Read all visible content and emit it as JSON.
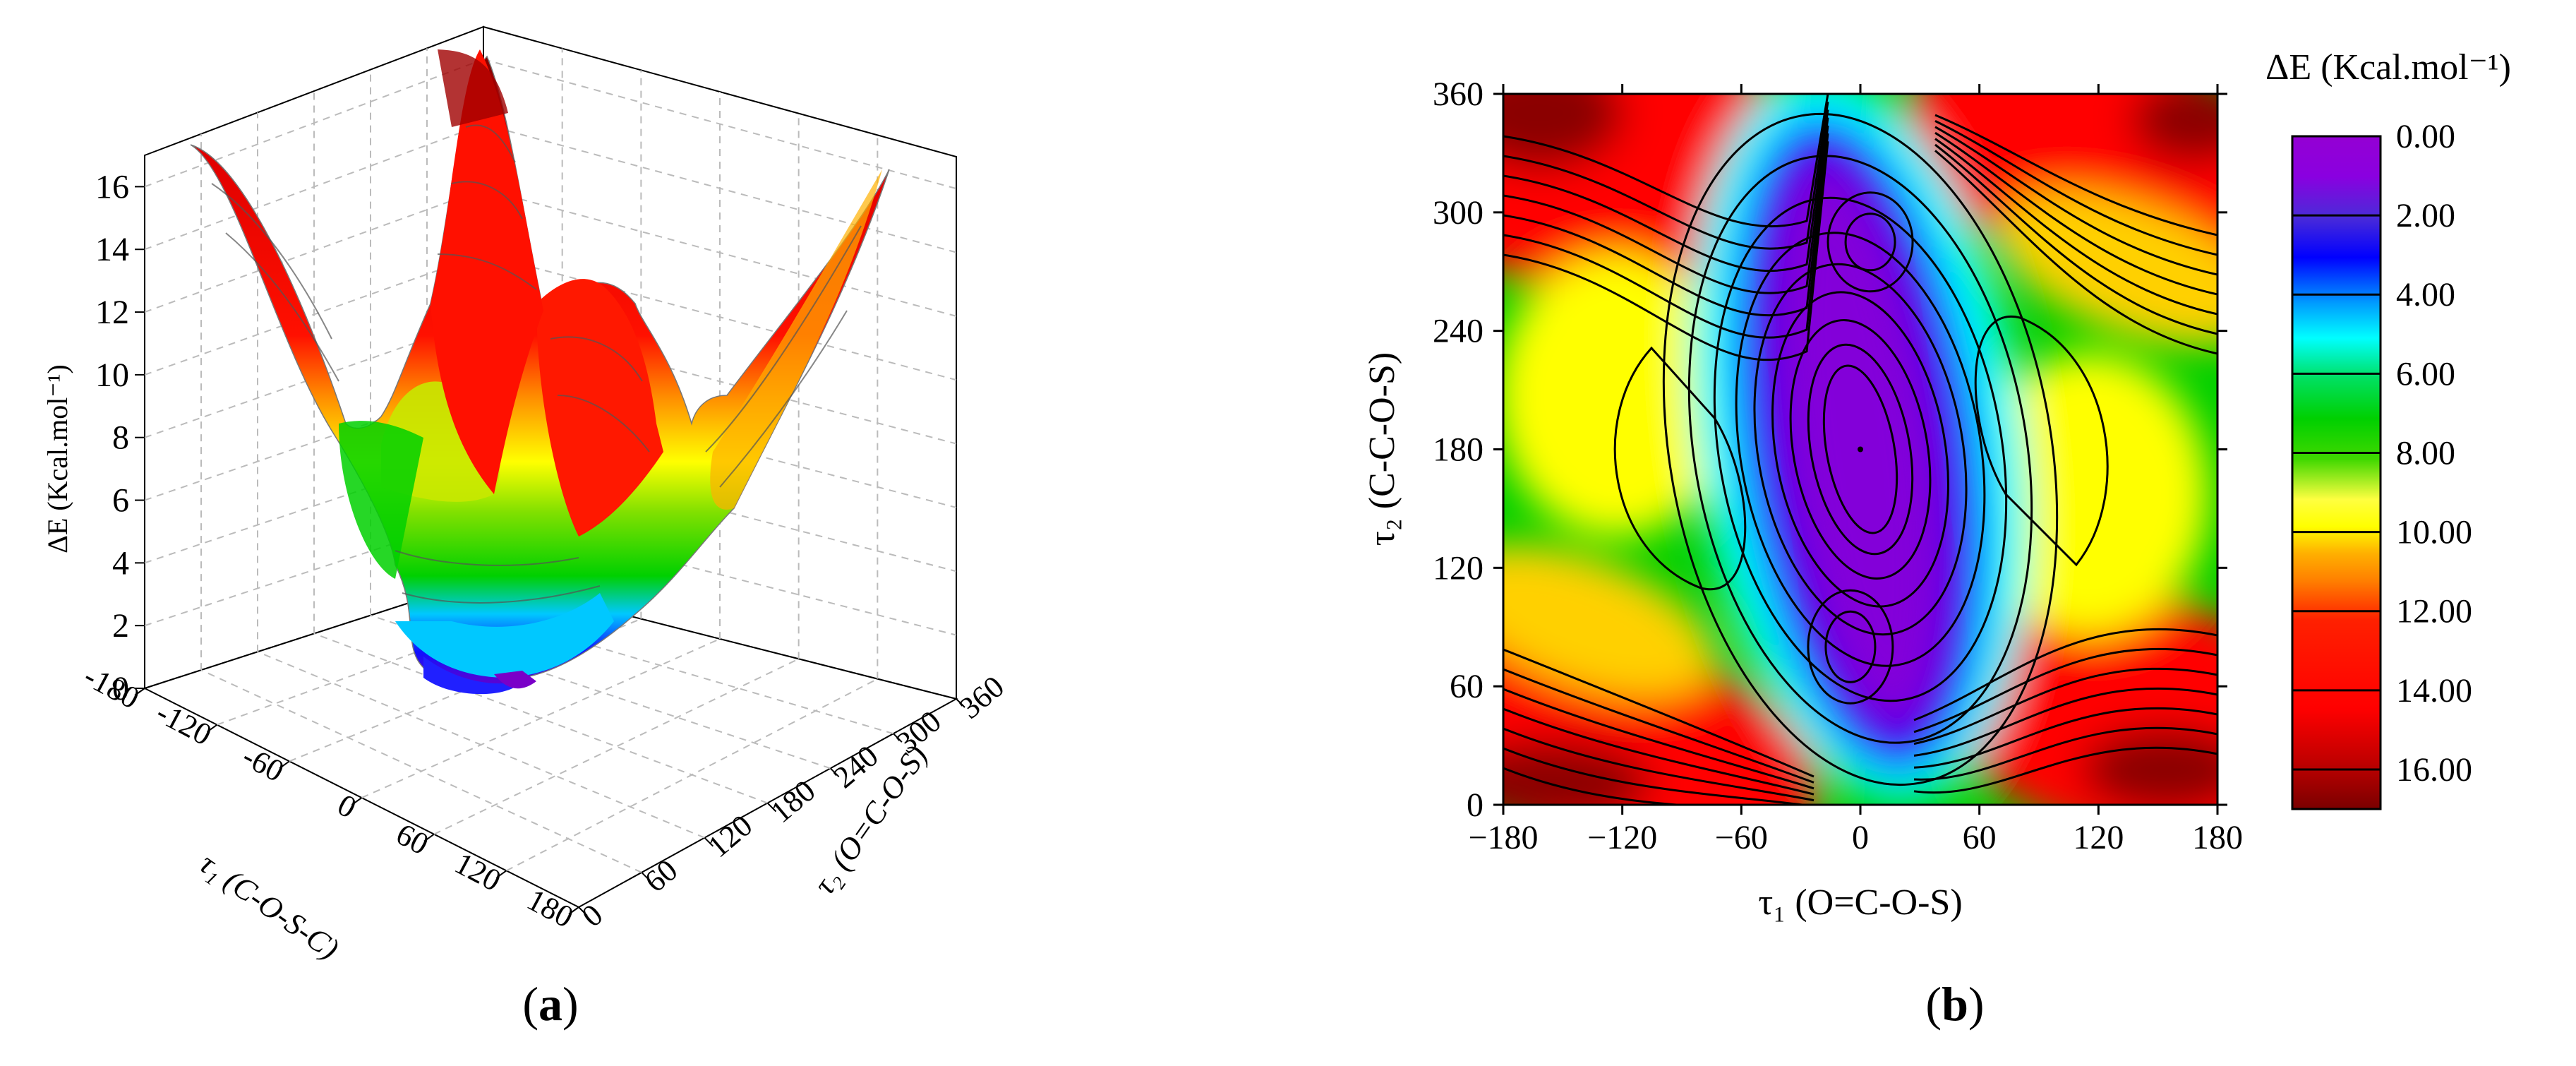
{
  "panels": {
    "a": {
      "open": "(",
      "letter": "a",
      "close": ")"
    },
    "b": {
      "open": "(",
      "letter": "b",
      "close": ")"
    }
  },
  "chart_data": [
    {
      "type": "surface3d",
      "panel": "a",
      "zlabel": "ΔE (Kcal.mol⁻¹)",
      "xlabel": "τ₁ (C-O-S-C)",
      "ylabel": "τ₂ (O=C-O-S)",
      "x_ticks": [
        "-180",
        "-120",
        "-60",
        "0",
        "60",
        "120",
        "180"
      ],
      "y_ticks": [
        "0",
        "60",
        "120",
        "180",
        "240",
        "300",
        "360"
      ],
      "z_ticks": [
        "0",
        "2",
        "4",
        "6",
        "8",
        "10",
        "12",
        "14",
        "16"
      ],
      "xlim": [
        -180,
        180
      ],
      "ylim": [
        0,
        360
      ],
      "zlim": [
        0,
        17
      ],
      "grid": true
    },
    {
      "type": "heatmap",
      "panel": "b",
      "xlabel": "τ₁ (O=C-O-S)",
      "ylabel": "τ₂ (C-C-O-S)",
      "x_ticks": [
        "−180",
        "−120",
        "−60",
        "0",
        "60",
        "120",
        "180"
      ],
      "y_ticks": [
        "0",
        "60",
        "120",
        "180",
        "240",
        "300",
        "360"
      ],
      "xlim": [
        -180,
        180
      ],
      "ylim": [
        0,
        360
      ],
      "colorbar_title": "ΔE (Kcal.mol⁻¹)",
      "colorbar_ticks": [
        "0.00",
        "2.00",
        "4.00",
        "6.00",
        "8.00",
        "10.00",
        "12.00",
        "14.00",
        "16.00"
      ],
      "colorbar_range": [
        0,
        17
      ],
      "minima": [
        {
          "x": 0,
          "y": 180,
          "value": 0.0
        },
        {
          "x": 5,
          "y": 285,
          "value": 0.9
        },
        {
          "x": -5,
          "y": 80,
          "value": 0.9
        }
      ],
      "colors": [
        "#9400d3",
        "#5a1ed8",
        "#0000ff",
        "#00e5ff",
        "#00d000",
        "#e8e800",
        "#ff8c00",
        "#ff0000",
        "#8b0000"
      ]
    }
  ]
}
